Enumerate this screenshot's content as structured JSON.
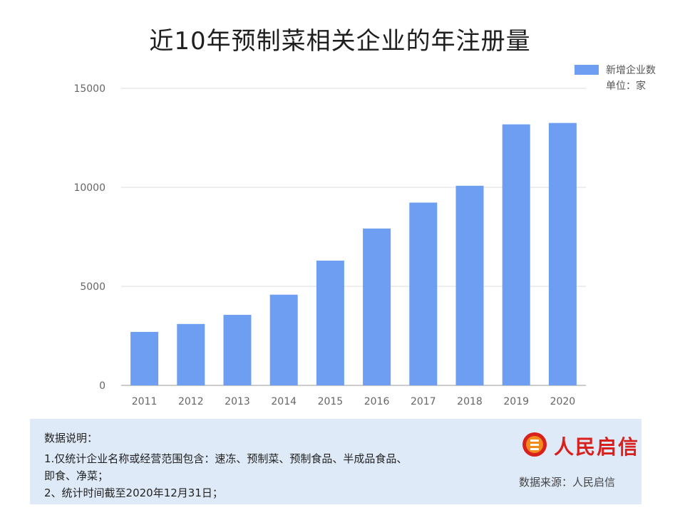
{
  "title": "近10年预制菜相关企业的年注册量",
  "legend": {
    "series_name": "新增企业数",
    "unit": "单位：家",
    "color": "#6d9ef2"
  },
  "chart_data": {
    "type": "bar",
    "title": "近10年预制菜相关企业的年注册量",
    "categories": [
      "2011",
      "2012",
      "2013",
      "2014",
      "2015",
      "2016",
      "2017",
      "2018",
      "2019",
      "2020"
    ],
    "series": [
      {
        "name": "新增企业数",
        "values": [
          2700,
          3100,
          3560,
          4580,
          6300,
          7920,
          9230,
          10080,
          13180,
          13250
        ]
      }
    ],
    "y_ticks": [
      "15000",
      "10000",
      "5000",
      "0"
    ],
    "ylim": [
      0,
      15000
    ],
    "grid": true,
    "legend_position": "top-right"
  },
  "notes": {
    "heading": "数据说明：",
    "lines": [
      "1.仅统计企业名称或经营范围包含：速冻、预制菜、预制食品、半成品食品、",
      "即食、净菜；",
      "2、统计时间截至2020年12月31日；"
    ]
  },
  "brand": {
    "name": "人民启信",
    "color": "#d8201c"
  },
  "source": "数据来源：人民启信"
}
